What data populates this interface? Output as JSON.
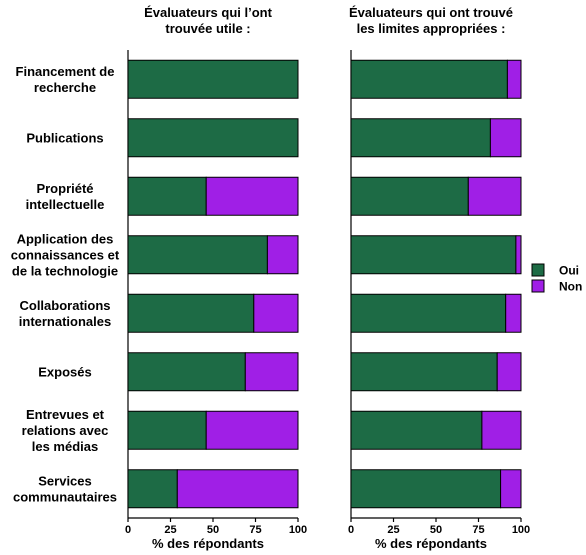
{
  "colors": {
    "oui": "#1d6b45",
    "non": "#a01fe6"
  },
  "legend": {
    "oui": "Oui",
    "non": "Non"
  },
  "chart_data": {
    "type": "bar",
    "orientation": "horizontal",
    "stacked": true,
    "categories": [
      "Financement de recherche",
      "Publications",
      "Propriété intellectuelle",
      "Application des connaissances et de la technologie",
      "Collaborations internationales",
      "Exposés",
      "Entrevues et relations avec les médias",
      "Services communautaires"
    ],
    "category_lines": [
      [
        "Financement de",
        "recherche"
      ],
      [
        "Publications"
      ],
      [
        "Propriété",
        "intellectuelle"
      ],
      [
        "Application des",
        "connaissances et",
        "de la technologie"
      ],
      [
        "Collaborations",
        "internationales"
      ],
      [
        "Exposés"
      ],
      [
        "Entrevues et",
        "relations avec",
        "les médias"
      ],
      [
        "Services",
        "communautaires"
      ]
    ],
    "legend_position": "right",
    "panels": [
      {
        "title_lines": [
          "Évaluateurs qui l’ont",
          "trouvée utile :"
        ],
        "xlabel": "% des répondants",
        "xlim": [
          0,
          100
        ],
        "xticks": [
          0,
          25,
          50,
          75,
          100
        ],
        "series": [
          {
            "name": "Oui",
            "values": [
              100,
              100,
              46,
              82,
              74,
              69,
              46,
              29
            ]
          },
          {
            "name": "Non",
            "values": [
              0,
              0,
              54,
              18,
              26,
              31,
              54,
              71
            ]
          }
        ]
      },
      {
        "title_lines": [
          "Évaluateurs qui ont trouvé",
          "les limites appropriées :"
        ],
        "xlabel": "% des répondants",
        "xlim": [
          0,
          100
        ],
        "xticks": [
          0,
          25,
          50,
          75,
          100
        ],
        "series": [
          {
            "name": "Oui",
            "values": [
              92,
              82,
              69,
              97,
              91,
              86,
              77,
              88
            ]
          },
          {
            "name": "Non",
            "values": [
              8,
              18,
              31,
              3,
              9,
              14,
              23,
              12
            ]
          }
        ]
      }
    ]
  }
}
